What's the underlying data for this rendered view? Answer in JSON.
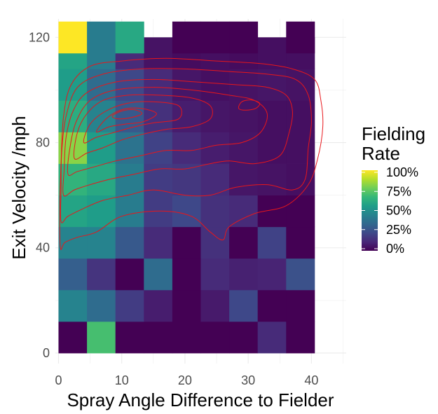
{
  "chart_data": {
    "type": "heatmap",
    "xlabel": "Spray Angle Difference to Fielder",
    "ylabel": "Exit Velocity /mph",
    "x_ticks": [
      0,
      10,
      20,
      30,
      40
    ],
    "y_ticks": [
      0,
      40,
      80,
      120
    ],
    "xlim": [
      -0.5,
      45.5
    ],
    "ylim": [
      -4,
      127
    ],
    "bin_width_x": 4.5,
    "bin_height_y": 12,
    "grid": true,
    "color_scale": "viridis",
    "legend": {
      "title_line1": "Fielding",
      "title_line2": "Rate",
      "labels": [
        "100%",
        "75%",
        "50%",
        "25%",
        "0%"
      ],
      "position": "right"
    },
    "cells": [
      {
        "x": 2.25,
        "y": 6,
        "rate": 0.0
      },
      {
        "x": 6.75,
        "y": 6,
        "rate": 0.7
      },
      {
        "x": 11.25,
        "y": 6,
        "rate": 0.0
      },
      {
        "x": 15.75,
        "y": 6,
        "rate": 0.0
      },
      {
        "x": 20.25,
        "y": 6,
        "rate": 0.0
      },
      {
        "x": 24.75,
        "y": 6,
        "rate": 0.0
      },
      {
        "x": 29.25,
        "y": 6,
        "rate": 0.0
      },
      {
        "x": 33.75,
        "y": 6,
        "rate": 0.12
      },
      {
        "x": 38.25,
        "y": 6,
        "rate": 0.0
      },
      {
        "x": 2.25,
        "y": 18,
        "rate": 0.45
      },
      {
        "x": 6.75,
        "y": 18,
        "rate": 0.35
      },
      {
        "x": 11.25,
        "y": 18,
        "rate": 0.18
      },
      {
        "x": 15.75,
        "y": 18,
        "rate": 0.08
      },
      {
        "x": 20.25,
        "y": 18,
        "rate": 0.0
      },
      {
        "x": 24.75,
        "y": 18,
        "rate": 0.07
      },
      {
        "x": 29.25,
        "y": 18,
        "rate": 0.22
      },
      {
        "x": 33.75,
        "y": 18,
        "rate": 0.0
      },
      {
        "x": 38.25,
        "y": 18,
        "rate": 0.0
      },
      {
        "x": 2.25,
        "y": 30,
        "rate": 0.3
      },
      {
        "x": 6.75,
        "y": 30,
        "rate": 0.15
      },
      {
        "x": 11.25,
        "y": 30,
        "rate": 0.0
      },
      {
        "x": 15.75,
        "y": 30,
        "rate": 0.35
      },
      {
        "x": 20.25,
        "y": 30,
        "rate": 0.0
      },
      {
        "x": 24.75,
        "y": 30,
        "rate": 0.12
      },
      {
        "x": 29.25,
        "y": 30,
        "rate": 0.09
      },
      {
        "x": 33.75,
        "y": 30,
        "rate": 0.1
      },
      {
        "x": 38.25,
        "y": 30,
        "rate": 0.25
      },
      {
        "x": 2.25,
        "y": 42,
        "rate": 0.45
      },
      {
        "x": 6.75,
        "y": 42,
        "rate": 0.45
      },
      {
        "x": 11.25,
        "y": 42,
        "rate": 0.28
      },
      {
        "x": 15.75,
        "y": 42,
        "rate": 0.12
      },
      {
        "x": 20.25,
        "y": 42,
        "rate": 0.0
      },
      {
        "x": 24.75,
        "y": 42,
        "rate": 0.14
      },
      {
        "x": 29.25,
        "y": 42,
        "rate": 0.0
      },
      {
        "x": 33.75,
        "y": 42,
        "rate": 0.2
      },
      {
        "x": 38.25,
        "y": 42,
        "rate": 0.0
      },
      {
        "x": 2.25,
        "y": 54,
        "rate": 0.58
      },
      {
        "x": 6.75,
        "y": 54,
        "rate": 0.55
      },
      {
        "x": 11.25,
        "y": 54,
        "rate": 0.42
      },
      {
        "x": 15.75,
        "y": 54,
        "rate": 0.18
      },
      {
        "x": 20.25,
        "y": 54,
        "rate": 0.22
      },
      {
        "x": 24.75,
        "y": 54,
        "rate": 0.14
      },
      {
        "x": 29.25,
        "y": 54,
        "rate": 0.12
      },
      {
        "x": 33.75,
        "y": 54,
        "rate": 0.0
      },
      {
        "x": 38.25,
        "y": 54,
        "rate": 0.0
      },
      {
        "x": 2.25,
        "y": 66,
        "rate": 0.65
      },
      {
        "x": 6.75,
        "y": 66,
        "rate": 0.6
      },
      {
        "x": 11.25,
        "y": 66,
        "rate": 0.42
      },
      {
        "x": 15.75,
        "y": 66,
        "rate": 0.18
      },
      {
        "x": 20.25,
        "y": 66,
        "rate": 0.16
      },
      {
        "x": 24.75,
        "y": 66,
        "rate": 0.12
      },
      {
        "x": 29.25,
        "y": 66,
        "rate": 0.06
      },
      {
        "x": 33.75,
        "y": 66,
        "rate": 0.05
      },
      {
        "x": 38.25,
        "y": 66,
        "rate": 0.04
      },
      {
        "x": 2.25,
        "y": 78,
        "rate": 0.82
      },
      {
        "x": 6.75,
        "y": 78,
        "rate": 0.55
      },
      {
        "x": 11.25,
        "y": 78,
        "rate": 0.38
      },
      {
        "x": 15.75,
        "y": 78,
        "rate": 0.2
      },
      {
        "x": 20.25,
        "y": 78,
        "rate": 0.12
      },
      {
        "x": 24.75,
        "y": 78,
        "rate": 0.08
      },
      {
        "x": 29.25,
        "y": 78,
        "rate": 0.06
      },
      {
        "x": 33.75,
        "y": 78,
        "rate": 0.04
      },
      {
        "x": 38.25,
        "y": 78,
        "rate": 0.04
      },
      {
        "x": 2.25,
        "y": 90,
        "rate": 0.62
      },
      {
        "x": 6.75,
        "y": 90,
        "rate": 0.45
      },
      {
        "x": 11.25,
        "y": 90,
        "rate": 0.28
      },
      {
        "x": 15.75,
        "y": 90,
        "rate": 0.14
      },
      {
        "x": 20.25,
        "y": 90,
        "rate": 0.08
      },
      {
        "x": 24.75,
        "y": 90,
        "rate": 0.06
      },
      {
        "x": 29.25,
        "y": 90,
        "rate": 0.05
      },
      {
        "x": 33.75,
        "y": 90,
        "rate": 0.04
      },
      {
        "x": 38.25,
        "y": 90,
        "rate": 0.04
      },
      {
        "x": 2.25,
        "y": 102,
        "rate": 0.55
      },
      {
        "x": 6.75,
        "y": 102,
        "rate": 0.35
      },
      {
        "x": 11.25,
        "y": 102,
        "rate": 0.22
      },
      {
        "x": 15.75,
        "y": 102,
        "rate": 0.12
      },
      {
        "x": 20.25,
        "y": 102,
        "rate": 0.06
      },
      {
        "x": 24.75,
        "y": 102,
        "rate": 0.04
      },
      {
        "x": 29.25,
        "y": 102,
        "rate": 0.05
      },
      {
        "x": 33.75,
        "y": 102,
        "rate": 0.06
      },
      {
        "x": 38.25,
        "y": 102,
        "rate": 0.05
      },
      {
        "x": 2.25,
        "y": 114,
        "rate": 0.58
      },
      {
        "x": 6.75,
        "y": 114,
        "rate": 0.42
      },
      {
        "x": 11.25,
        "y": 114,
        "rate": 0.12
      },
      {
        "x": 15.75,
        "y": 114,
        "rate": 0.05
      },
      {
        "x": 20.25,
        "y": 114,
        "rate": 0.03
      },
      {
        "x": 24.75,
        "y": 114,
        "rate": 0.04
      },
      {
        "x": 29.25,
        "y": 114,
        "rate": 0.03
      },
      {
        "x": 33.75,
        "y": 114,
        "rate": 0.04
      },
      {
        "x": 38.25,
        "y": 114,
        "rate": 0.04
      },
      {
        "x": 2.25,
        "y": 120,
        "rate": 1.0,
        "h": 12
      },
      {
        "x": 6.75,
        "y": 120,
        "rate": 0.42
      },
      {
        "x": 11.25,
        "y": 120,
        "rate": 0.6
      },
      {
        "x": 20.25,
        "y": 120,
        "rate": 0.0
      },
      {
        "x": 24.75,
        "y": 120,
        "rate": 0.0
      },
      {
        "x": 29.25,
        "y": 120,
        "rate": 0.0
      },
      {
        "x": 38.25,
        "y": 120,
        "rate": 0.0
      }
    ],
    "contour_color": "#e8161b",
    "contours": [
      [
        [
          0.3,
          40
        ],
        [
          0.2,
          55
        ],
        [
          0.4,
          72
        ],
        [
          0.8,
          90
        ],
        [
          2,
          102
        ],
        [
          5,
          109
        ],
        [
          10,
          111
        ],
        [
          17,
          112
        ],
        [
          25,
          111
        ],
        [
          32,
          110
        ],
        [
          37,
          108
        ],
        [
          40.5,
          104
        ],
        [
          41.5,
          96
        ],
        [
          41.8,
          86
        ],
        [
          41,
          74
        ],
        [
          39.5,
          64
        ],
        [
          36,
          56
        ],
        [
          31,
          53
        ],
        [
          27,
          48
        ],
        [
          26,
          43
        ],
        [
          24,
          46
        ],
        [
          21,
          52
        ],
        [
          16,
          54
        ],
        [
          10,
          52
        ],
        [
          6,
          46
        ],
        [
          3,
          44
        ],
        [
          1,
          42
        ],
        [
          0.3,
          40
        ]
      ],
      [
        [
          0.4,
          50
        ],
        [
          0.4,
          62
        ],
        [
          0.5,
          76
        ],
        [
          1.2,
          90
        ],
        [
          3,
          101
        ],
        [
          7,
          106
        ],
        [
          13,
          108
        ],
        [
          20,
          108
        ],
        [
          27,
          107
        ],
        [
          33,
          106
        ],
        [
          37.5,
          104
        ],
        [
          39.5,
          98
        ],
        [
          40,
          88
        ],
        [
          39.5,
          78
        ],
        [
          39,
          66
        ],
        [
          37,
          62
        ],
        [
          33,
          64
        ],
        [
          28,
          63
        ],
        [
          24,
          60
        ],
        [
          20,
          60
        ],
        [
          15,
          62
        ],
        [
          11,
          60
        ],
        [
          7,
          58
        ],
        [
          4,
          55
        ],
        [
          1.5,
          52
        ],
        [
          0.4,
          50
        ]
      ],
      [
        [
          0.8,
          60
        ],
        [
          0.9,
          70
        ],
        [
          1.2,
          82
        ],
        [
          2.3,
          92
        ],
        [
          4.5,
          99
        ],
        [
          9,
          103
        ],
        [
          15,
          104
        ],
        [
          22,
          103
        ],
        [
          28,
          102
        ],
        [
          33,
          101
        ],
        [
          36,
          98
        ],
        [
          37,
          92
        ],
        [
          36.5,
          84
        ],
        [
          35,
          75
        ],
        [
          31,
          72
        ],
        [
          27,
          73
        ],
        [
          24,
          72
        ],
        [
          20,
          70
        ],
        [
          16,
          70
        ],
        [
          12,
          68
        ],
        [
          8,
          66
        ],
        [
          5,
          64
        ],
        [
          2.5,
          62
        ],
        [
          0.8,
          60
        ]
      ],
      [
        [
          1.5,
          68
        ],
        [
          1.8,
          78
        ],
        [
          2.8,
          88
        ],
        [
          5,
          96
        ],
        [
          9,
          100
        ],
        [
          15,
          101
        ],
        [
          21,
          100
        ],
        [
          27,
          98
        ],
        [
          31,
          96
        ],
        [
          33,
          91
        ],
        [
          32,
          84
        ],
        [
          29,
          80
        ],
        [
          25,
          79
        ],
        [
          21,
          77
        ],
        [
          17,
          77
        ],
        [
          13,
          75
        ],
        [
          9,
          73
        ],
        [
          6,
          71
        ],
        [
          3,
          69
        ],
        [
          1.5,
          68
        ]
      ],
      [
        [
          2.5,
          74
        ],
        [
          3,
          84
        ],
        [
          4.5,
          91
        ],
        [
          7,
          96
        ],
        [
          11,
          98
        ],
        [
          16,
          98
        ],
        [
          21,
          97
        ],
        [
          24,
          94
        ],
        [
          24,
          89
        ],
        [
          21,
          86
        ],
        [
          17,
          85
        ],
        [
          13,
          83
        ],
        [
          10,
          81
        ],
        [
          7,
          78
        ],
        [
          4.5,
          76
        ],
        [
          2.5,
          74
        ]
      ],
      [
        [
          4,
          80
        ],
        [
          5,
          87
        ],
        [
          7.5,
          92
        ],
        [
          11,
          95
        ],
        [
          15,
          95.5
        ],
        [
          19,
          94
        ],
        [
          19,
          89
        ],
        [
          15,
          87.5
        ],
        [
          12,
          86
        ],
        [
          9,
          84
        ],
        [
          6,
          82
        ],
        [
          4,
          80
        ]
      ],
      [
        [
          6,
          84
        ],
        [
          7.5,
          89
        ],
        [
          10,
          92.5
        ],
        [
          13,
          93
        ],
        [
          15.5,
          91
        ],
        [
          13.5,
          88
        ],
        [
          10.5,
          87
        ],
        [
          8,
          86
        ],
        [
          6,
          84
        ]
      ],
      [
        [
          8.5,
          90
        ],
        [
          10,
          92
        ],
        [
          12,
          92.5
        ],
        [
          13.2,
          91
        ],
        [
          11.5,
          89.5
        ],
        [
          9.5,
          89
        ],
        [
          8.5,
          90
        ]
      ],
      [
        [
          28.5,
          93
        ],
        [
          29,
          95.5
        ],
        [
          30.5,
          96.2
        ],
        [
          31.8,
          95
        ],
        [
          31.2,
          93
        ],
        [
          29.6,
          92.3
        ],
        [
          28.5,
          93
        ]
      ]
    ]
  }
}
